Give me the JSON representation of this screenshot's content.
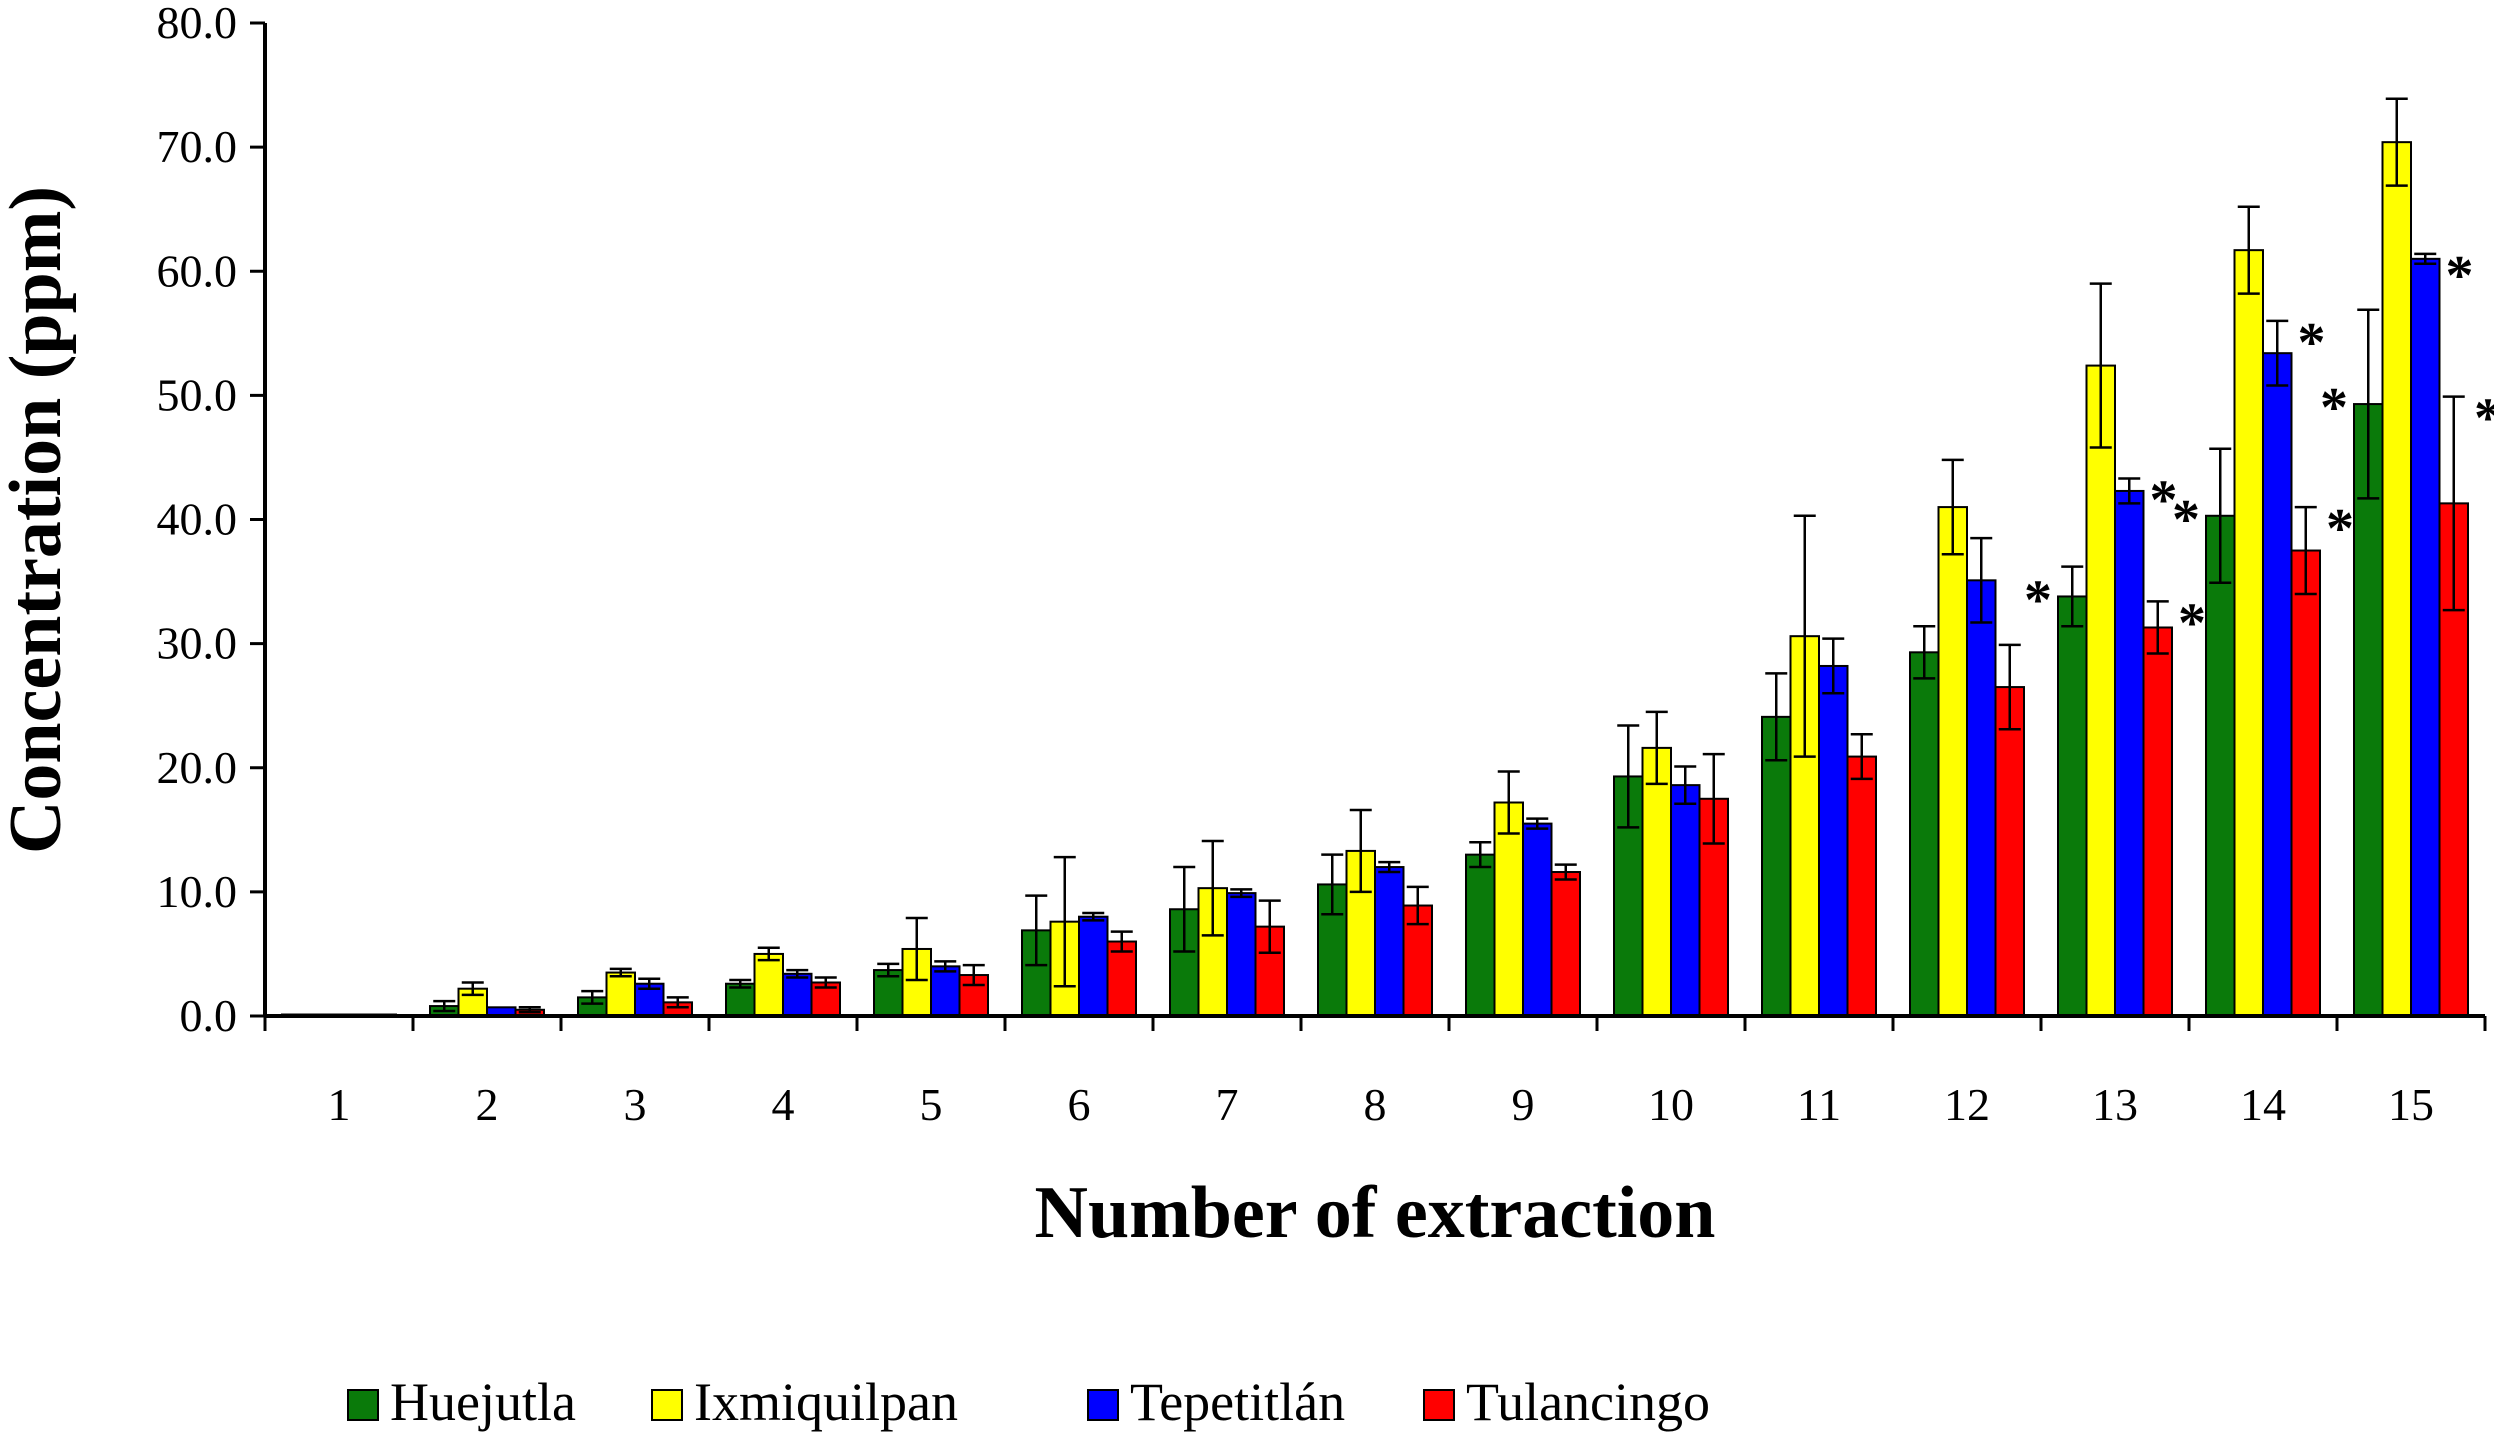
{
  "chart_data": {
    "type": "bar",
    "title": "",
    "xlabel": "Number of extraction",
    "ylabel": "Concentration (ppm)",
    "ylim": [
      0,
      80
    ],
    "yticks": [
      "0.0",
      "10.0",
      "20.0",
      "30.0",
      "40.0",
      "50.0",
      "60.0",
      "70.0",
      "80.0"
    ],
    "categories": [
      "1",
      "2",
      "3",
      "4",
      "5",
      "6",
      "7",
      "8",
      "9",
      "10",
      "11",
      "12",
      "13",
      "14",
      "15"
    ],
    "legend_position": "bottom",
    "series": [
      {
        "name": "Huejutla",
        "color": "#0a7a0a",
        "values": [
          0.1,
          0.8,
          1.5,
          2.6,
          3.7,
          6.9,
          8.6,
          10.6,
          13.0,
          19.3,
          24.1,
          29.3,
          33.8,
          40.3,
          49.3
        ],
        "errors": [
          0.05,
          0.4,
          0.5,
          0.3,
          0.5,
          2.8,
          3.4,
          2.4,
          1.0,
          4.1,
          3.5,
          2.1,
          2.4,
          5.4,
          7.6
        ],
        "significant": [
          false,
          false,
          false,
          false,
          false,
          false,
          false,
          false,
          false,
          false,
          false,
          false,
          true,
          true,
          true
        ]
      },
      {
        "name": "Ixmiquilpan",
        "color": "#ffff00",
        "values": [
          0.1,
          2.2,
          3.5,
          5.0,
          5.4,
          7.6,
          10.3,
          13.3,
          17.2,
          21.6,
          30.6,
          41.0,
          52.4,
          61.7,
          70.4
        ],
        "errors": [
          0.05,
          0.5,
          0.3,
          0.5,
          2.5,
          5.2,
          3.8,
          3.3,
          2.5,
          2.9,
          9.7,
          3.8,
          6.6,
          3.5,
          3.5
        ],
        "significant": [
          false,
          false,
          false,
          false,
          false,
          false,
          false,
          false,
          false,
          false,
          false,
          false,
          false,
          false,
          false
        ]
      },
      {
        "name": "Tepetitlán",
        "color": "#0000ff",
        "values": [
          0.1,
          0.7,
          2.6,
          3.4,
          4.0,
          8.0,
          9.9,
          12.0,
          15.5,
          18.6,
          28.2,
          35.1,
          42.3,
          53.4,
          61.0
        ],
        "errors": [
          0.05,
          0.1,
          0.4,
          0.3,
          0.4,
          0.3,
          0.3,
          0.4,
          0.4,
          1.5,
          2.2,
          3.4,
          1.0,
          2.6,
          0.4
        ],
        "significant": [
          false,
          false,
          false,
          false,
          false,
          false,
          false,
          false,
          false,
          false,
          false,
          false,
          true,
          true,
          true
        ]
      },
      {
        "name": "Tulancingo",
        "color": "#ff0000",
        "values": [
          0.1,
          0.5,
          1.1,
          2.7,
          3.3,
          6.0,
          7.2,
          8.9,
          11.6,
          17.5,
          20.9,
          26.5,
          31.3,
          37.5,
          41.3
        ],
        "errors": [
          0.05,
          0.2,
          0.4,
          0.4,
          0.8,
          0.8,
          2.1,
          1.5,
          0.6,
          3.6,
          1.8,
          3.4,
          2.1,
          3.5,
          8.6
        ],
        "significant": [
          false,
          false,
          false,
          false,
          false,
          false,
          false,
          false,
          false,
          false,
          false,
          false,
          true,
          true,
          true
        ]
      }
    ],
    "significance_marker": "*"
  }
}
